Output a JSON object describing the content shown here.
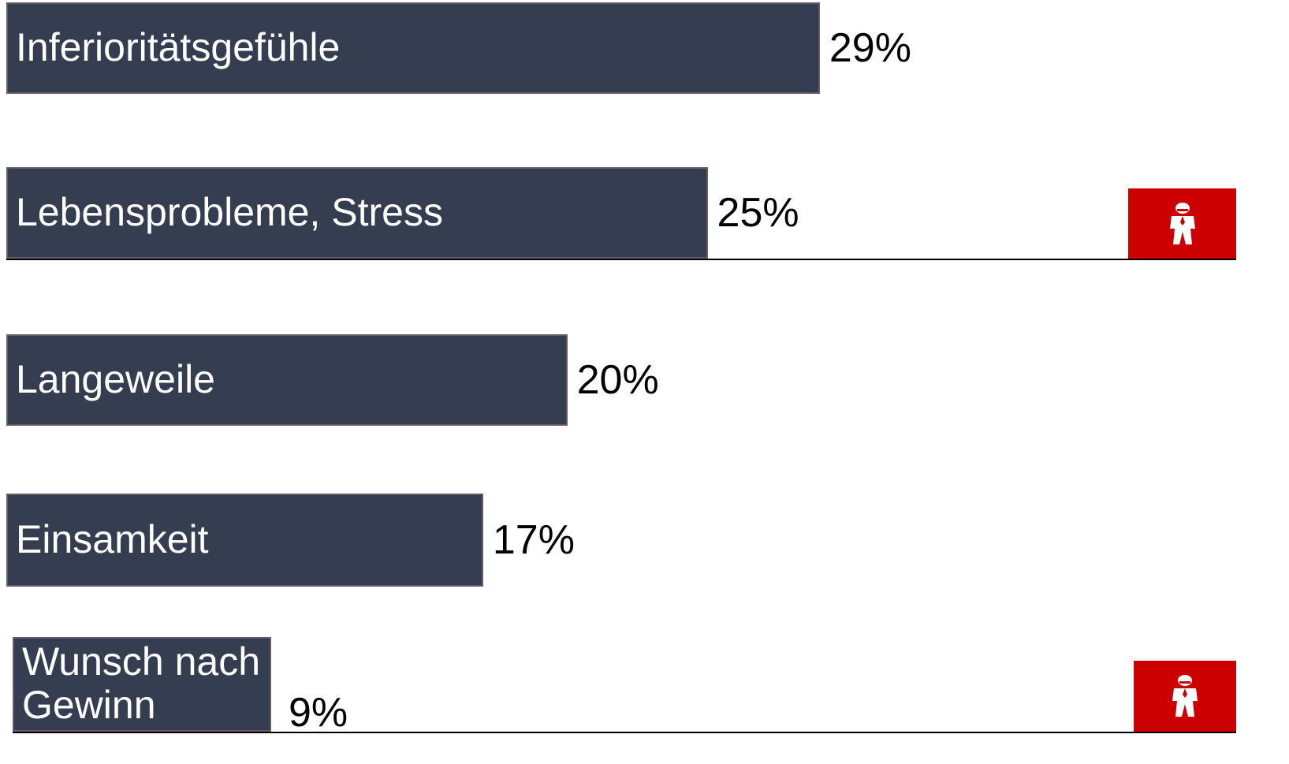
{
  "chart_data": {
    "type": "bar",
    "orientation": "horizontal",
    "categories": [
      "Inferioritätsgefühle",
      "Lebensprobleme, Stress",
      "Langeweile",
      "Einsamkeit",
      "Wunsch nach\nGewinn"
    ],
    "values": [
      29,
      25,
      20,
      17,
      9
    ],
    "value_labels": [
      "29%",
      "25%",
      "20%",
      "17%",
      "9%"
    ],
    "unit": "%",
    "highlighted": [
      false,
      true,
      false,
      false,
      true
    ],
    "xlim": [
      0,
      43
    ]
  },
  "colors": {
    "bar_fill": "#353e50",
    "bar_border": "#6a5a68",
    "badge": "#cc0000"
  },
  "icons": {
    "badge": "person-icon"
  }
}
